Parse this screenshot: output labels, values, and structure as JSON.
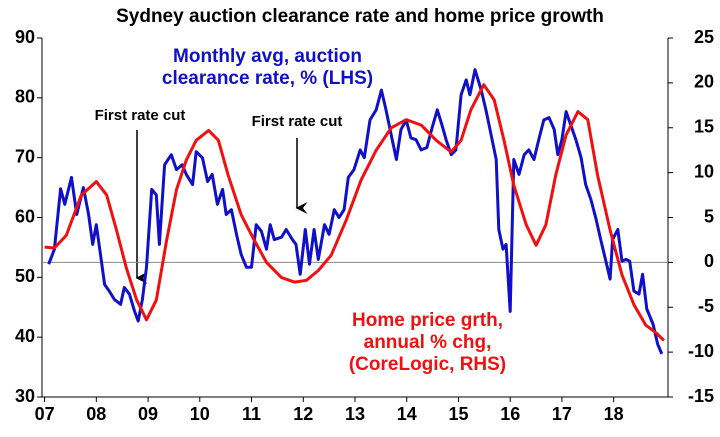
{
  "chart_data": {
    "type": "line",
    "title": "Sydney auction clearance rate and home price growth",
    "xlim": [
      2006.95,
      2019.05
    ],
    "xticks": [
      {
        "value": 2007,
        "label": "07"
      },
      {
        "value": 2008,
        "label": "08"
      },
      {
        "value": 2009,
        "label": "09"
      },
      {
        "value": 2010,
        "label": "10"
      },
      {
        "value": 2011,
        "label": "11"
      },
      {
        "value": 2012,
        "label": "12"
      },
      {
        "value": 2013,
        "label": "13"
      },
      {
        "value": 2014,
        "label": "14"
      },
      {
        "value": 2015,
        "label": "15"
      },
      {
        "value": 2016,
        "label": "16"
      },
      {
        "value": 2017,
        "label": "17"
      },
      {
        "value": 2018,
        "label": "18"
      }
    ],
    "ylim": [
      30,
      90
    ],
    "yticks": [
      30,
      40,
      50,
      60,
      70,
      80,
      90
    ],
    "y2lim": [
      -15,
      25
    ],
    "y2ticks": [
      -15,
      -10,
      -5,
      0,
      5,
      10,
      15,
      20,
      25
    ],
    "zero_line": true,
    "annotations": [
      "First rate cut",
      "First rate cut"
    ],
    "series": [
      {
        "name": "Monthly avg, auction clearance rate, % (LHS)",
        "color": "#1010c8",
        "axis": "y",
        "x": [
          2007.08,
          2007.19,
          2007.31,
          2007.39,
          2007.52,
          2007.62,
          2007.75,
          2007.85,
          2007.93,
          2008.0,
          2008.08,
          2008.16,
          2008.25,
          2008.35,
          2008.47,
          2008.54,
          2008.64,
          2008.74,
          2008.81,
          2008.89,
          2008.97,
          2009.07,
          2009.16,
          2009.22,
          2009.32,
          2009.45,
          2009.55,
          2009.66,
          2009.74,
          2009.86,
          2009.93,
          2010.05,
          2010.15,
          2010.24,
          2010.34,
          2010.44,
          2010.51,
          2010.61,
          2010.71,
          2010.8,
          2010.9,
          2011.0,
          2011.09,
          2011.19,
          2011.29,
          2011.36,
          2011.44,
          2011.58,
          2011.67,
          2011.79,
          2011.86,
          2011.94,
          2012.04,
          2012.12,
          2012.21,
          2012.29,
          2012.41,
          2012.5,
          2012.6,
          2012.69,
          2012.79,
          2012.87,
          2012.98,
          2013.1,
          2013.18,
          2013.29,
          2013.41,
          2013.51,
          2013.6,
          2013.72,
          2013.8,
          2013.89,
          2013.99,
          2014.08,
          2014.18,
          2014.28,
          2014.39,
          2014.49,
          2014.59,
          2014.68,
          2014.76,
          2014.86,
          2014.95,
          2015.05,
          2015.15,
          2015.22,
          2015.32,
          2015.44,
          2015.53,
          2015.61,
          2015.73,
          2015.78,
          2015.86,
          2015.92,
          2016.0,
          2016.07,
          2016.17,
          2016.27,
          2016.36,
          2016.46,
          2016.56,
          2016.65,
          2016.75,
          2016.85,
          2016.92,
          2017.0,
          2017.08,
          2017.17,
          2017.27,
          2017.37,
          2017.46,
          2017.56,
          2017.66,
          2017.75,
          2017.85,
          2017.93,
          2017.98,
          2018.08,
          2018.16,
          2018.24,
          2018.31,
          2018.39,
          2018.49,
          2018.56,
          2018.64,
          2018.76,
          2018.85,
          2018.93
        ],
        "values": [
          52.2,
          54.7,
          64.8,
          62.2,
          66.7,
          60.5,
          65,
          60.5,
          55.5,
          58.8,
          53.8,
          48.8,
          47.7,
          46.3,
          45.5,
          48.3,
          47.2,
          44.3,
          42.7,
          46.3,
          51.7,
          64.7,
          63.8,
          55.5,
          68.8,
          70.5,
          68,
          68.8,
          67.2,
          65.5,
          71,
          70,
          66,
          67.2,
          62.2,
          64.7,
          60.5,
          61.3,
          57.2,
          53.8,
          51.7,
          51.7,
          58.8,
          57.7,
          54.7,
          58.8,
          56.3,
          56.7,
          58,
          56.3,
          55.5,
          50.5,
          58,
          52.2,
          58,
          53,
          58.8,
          57.2,
          61.3,
          60,
          61.3,
          66.7,
          68,
          71.3,
          70,
          76.3,
          78,
          81.3,
          78,
          73,
          69.7,
          74.7,
          76.3,
          73.3,
          73,
          71.3,
          71.7,
          75,
          78,
          75.5,
          73,
          70.5,
          71.3,
          80.5,
          83,
          80.5,
          84.7,
          81.3,
          78,
          74.7,
          69.7,
          58,
          54.7,
          55.5,
          44.3,
          69.7,
          67.2,
          70.5,
          71.3,
          69.7,
          73.3,
          76.3,
          76.7,
          74.7,
          70.5,
          73,
          77.7,
          75.5,
          73,
          70,
          65.5,
          63,
          59.7,
          56.3,
          52.7,
          49.7,
          56.3,
          58,
          52.7,
          53,
          52.7,
          47.7,
          47.2,
          50.5,
          44.7,
          42.2,
          38.8,
          37.2
        ]
      },
      {
        "name": "Home price grth, annual % chg, (CoreLogic, RHS)",
        "color": "#f01010",
        "axis": "y2",
        "x": [
          2007.0,
          2007.19,
          2007.42,
          2007.71,
          2008.0,
          2008.2,
          2008.39,
          2008.58,
          2008.78,
          2008.97,
          2009.16,
          2009.36,
          2009.55,
          2009.74,
          2009.93,
          2010.17,
          2010.36,
          2010.55,
          2010.8,
          2011.05,
          2011.29,
          2011.58,
          2011.83,
          2012.06,
          2012.29,
          2012.54,
          2012.83,
          2013.12,
          2013.41,
          2013.7,
          2013.99,
          2014.28,
          2014.57,
          2014.86,
          2015.05,
          2015.24,
          2015.49,
          2015.69,
          2015.88,
          2016.07,
          2016.31,
          2016.5,
          2016.69,
          2016.88,
          2017.08,
          2017.31,
          2017.5,
          2017.69,
          2017.93,
          2018.16,
          2018.39,
          2018.62,
          2018.81,
          2018.97
        ],
        "values": [
          1.7,
          1.6,
          3.0,
          7.5,
          9.0,
          7.5,
          3.6,
          -0.6,
          -4.2,
          -6.4,
          -4.2,
          2.5,
          8.1,
          11.4,
          13.6,
          14.7,
          13.6,
          9.7,
          5.3,
          2.5,
          0,
          -1.7,
          -2.2,
          -2.0,
          -0.9,
          0.8,
          4.7,
          9.2,
          12.5,
          15.0,
          15.9,
          15.3,
          13.6,
          12.3,
          13.6,
          17.0,
          19.8,
          18.1,
          13.6,
          8.6,
          4.2,
          1.9,
          4.2,
          9.7,
          14.2,
          16.8,
          15.9,
          9.7,
          3.6,
          -1.4,
          -4.7,
          -7.0,
          -7.8,
          -8.7
        ]
      }
    ]
  }
}
